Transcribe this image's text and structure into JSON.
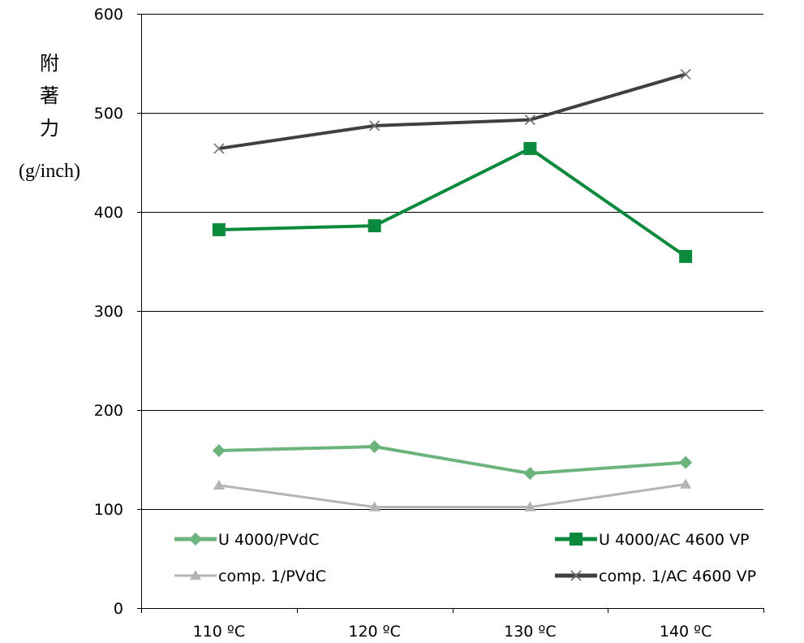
{
  "chart_data": {
    "type": "line",
    "categories": [
      "110 ºC",
      "120 ºC",
      "130 ºC",
      "140 ºC"
    ],
    "ylabel": [
      "附",
      "著",
      "力",
      "(g/inch)"
    ],
    "ylim": [
      0,
      600
    ],
    "yticks": [
      "0",
      "100",
      "200",
      "300",
      "400",
      "500",
      "600"
    ],
    "grid": true,
    "legend_placement": "bottom-inside",
    "series": [
      {
        "name": "U 4000/PVdC",
        "values": [
          159,
          163,
          136,
          147
        ],
        "color": "#6cb47c",
        "marker": "diamond"
      },
      {
        "name": "U 4000/AC 4600 VP",
        "values": [
          382,
          386,
          464,
          355
        ],
        "color": "#0b8a3e",
        "marker": "square"
      },
      {
        "name": "comp. 1/PVdC",
        "values": [
          124,
          102,
          102,
          125
        ],
        "color": "#b4b4b4",
        "marker": "triangle"
      },
      {
        "name": "comp. 1/AC 4600 VP",
        "values": [
          464,
          487,
          493,
          539
        ],
        "color": "#404040",
        "marker": "x"
      }
    ]
  }
}
